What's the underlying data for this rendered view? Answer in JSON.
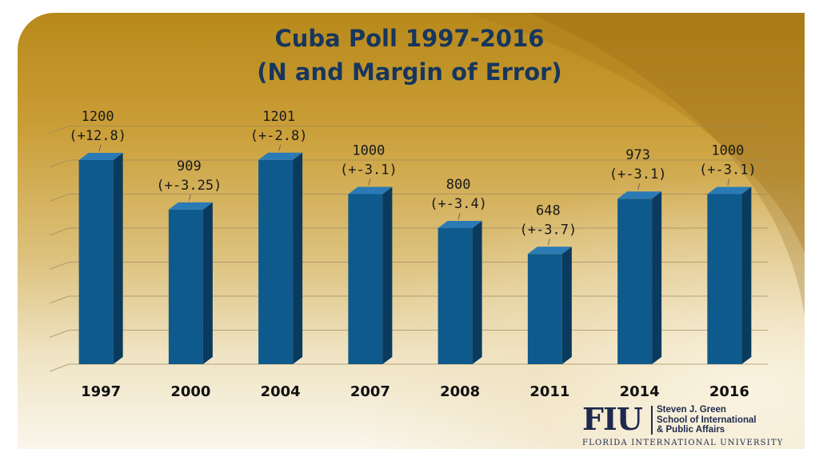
{
  "slide": {
    "title_line1": "Cuba Poll 1997-2016",
    "title_line2": "(N and Margin of Error)"
  },
  "colors": {
    "bar_front": "#0f5a8c",
    "bar_side": "#0a3a5e",
    "bar_top": "#2a7ab5",
    "title": "#17365d",
    "gridline": "#9c8a5e"
  },
  "chart_data": {
    "type": "bar",
    "title": "Cuba Poll 1997-2016 (N and Margin of Error)",
    "xlabel": "",
    "ylabel": "",
    "categories": [
      "1997",
      "2000",
      "2004",
      "2007",
      "2008",
      "2011",
      "2014",
      "2016"
    ],
    "values": [
      1200,
      909,
      1201,
      1000,
      800,
      648,
      973,
      1000
    ],
    "margins_of_error": [
      "+12.8",
      "+-3.25",
      "+-2.8",
      "+-3.1",
      "+-3.4",
      "+-3.7",
      "+-3.1",
      "+-3.1"
    ],
    "label_lines_top": [
      "1200",
      "909",
      "1201",
      "1000",
      "800",
      "648",
      "973",
      "1000"
    ],
    "label_lines_bottom": [
      "(+12.8)",
      "(+-3.25)",
      "(+-2.8)",
      "(+-3.1)",
      "(+-3.4)",
      "(+-3.7)",
      "(+-3.1)",
      "(+-3.1)"
    ],
    "ylim": [
      0,
      1400
    ],
    "grid": true,
    "legend": "none"
  },
  "logo": {
    "wordmark": "FIU",
    "school_line1": "Steven J. Green",
    "school_line2": "School of International",
    "school_line3": "& Public Affairs",
    "university": "Florida International University"
  }
}
